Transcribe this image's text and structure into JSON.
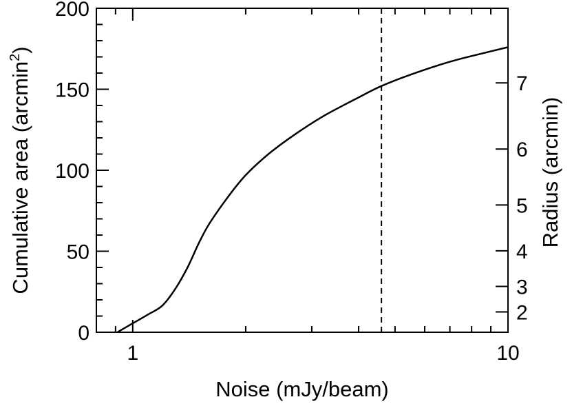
{
  "chart_data": {
    "type": "line",
    "xlabel": "Noise (mJy/beam)",
    "ylabel": "Cumulative area (arcmin",
    "ylabel_sup": "2",
    "ylabel_close": ")",
    "y2label": "Radius (arcmin)",
    "x_scale": "log",
    "xlim": [
      0.8,
      10
    ],
    "ylim": [
      0,
      200
    ],
    "x_ticks": [
      {
        "value": 1,
        "label": "1"
      },
      {
        "value": 10,
        "label": "10"
      }
    ],
    "y_ticks": [
      {
        "value": 0,
        "label": "0"
      },
      {
        "value": 50,
        "label": "50"
      },
      {
        "value": 100,
        "label": "100"
      },
      {
        "value": 150,
        "label": "150"
      },
      {
        "value": 200,
        "label": "200"
      }
    ],
    "y2_ticks": [
      {
        "value": 2,
        "label": "2"
      },
      {
        "value": 3,
        "label": "3"
      },
      {
        "value": 4,
        "label": "4"
      },
      {
        "value": 5,
        "label": "5"
      },
      {
        "value": 6,
        "label": "6"
      },
      {
        "value": 7,
        "label": "7"
      }
    ],
    "vline_x": 4.6,
    "series": [
      {
        "x": [
          0.91,
          0.95,
          1.0,
          1.1,
          1.2,
          1.3,
          1.4,
          1.5,
          1.6,
          1.8,
          2.0,
          2.3,
          2.7,
          3.2,
          4.0,
          4.6,
          5.5,
          7.0,
          8.5,
          10.0
        ],
        "y": [
          0,
          2.5,
          5.5,
          11,
          16.5,
          27,
          40,
          55,
          67,
          84,
          97,
          110,
          122,
          133,
          145,
          152,
          159,
          167,
          172,
          176
        ]
      }
    ]
  }
}
